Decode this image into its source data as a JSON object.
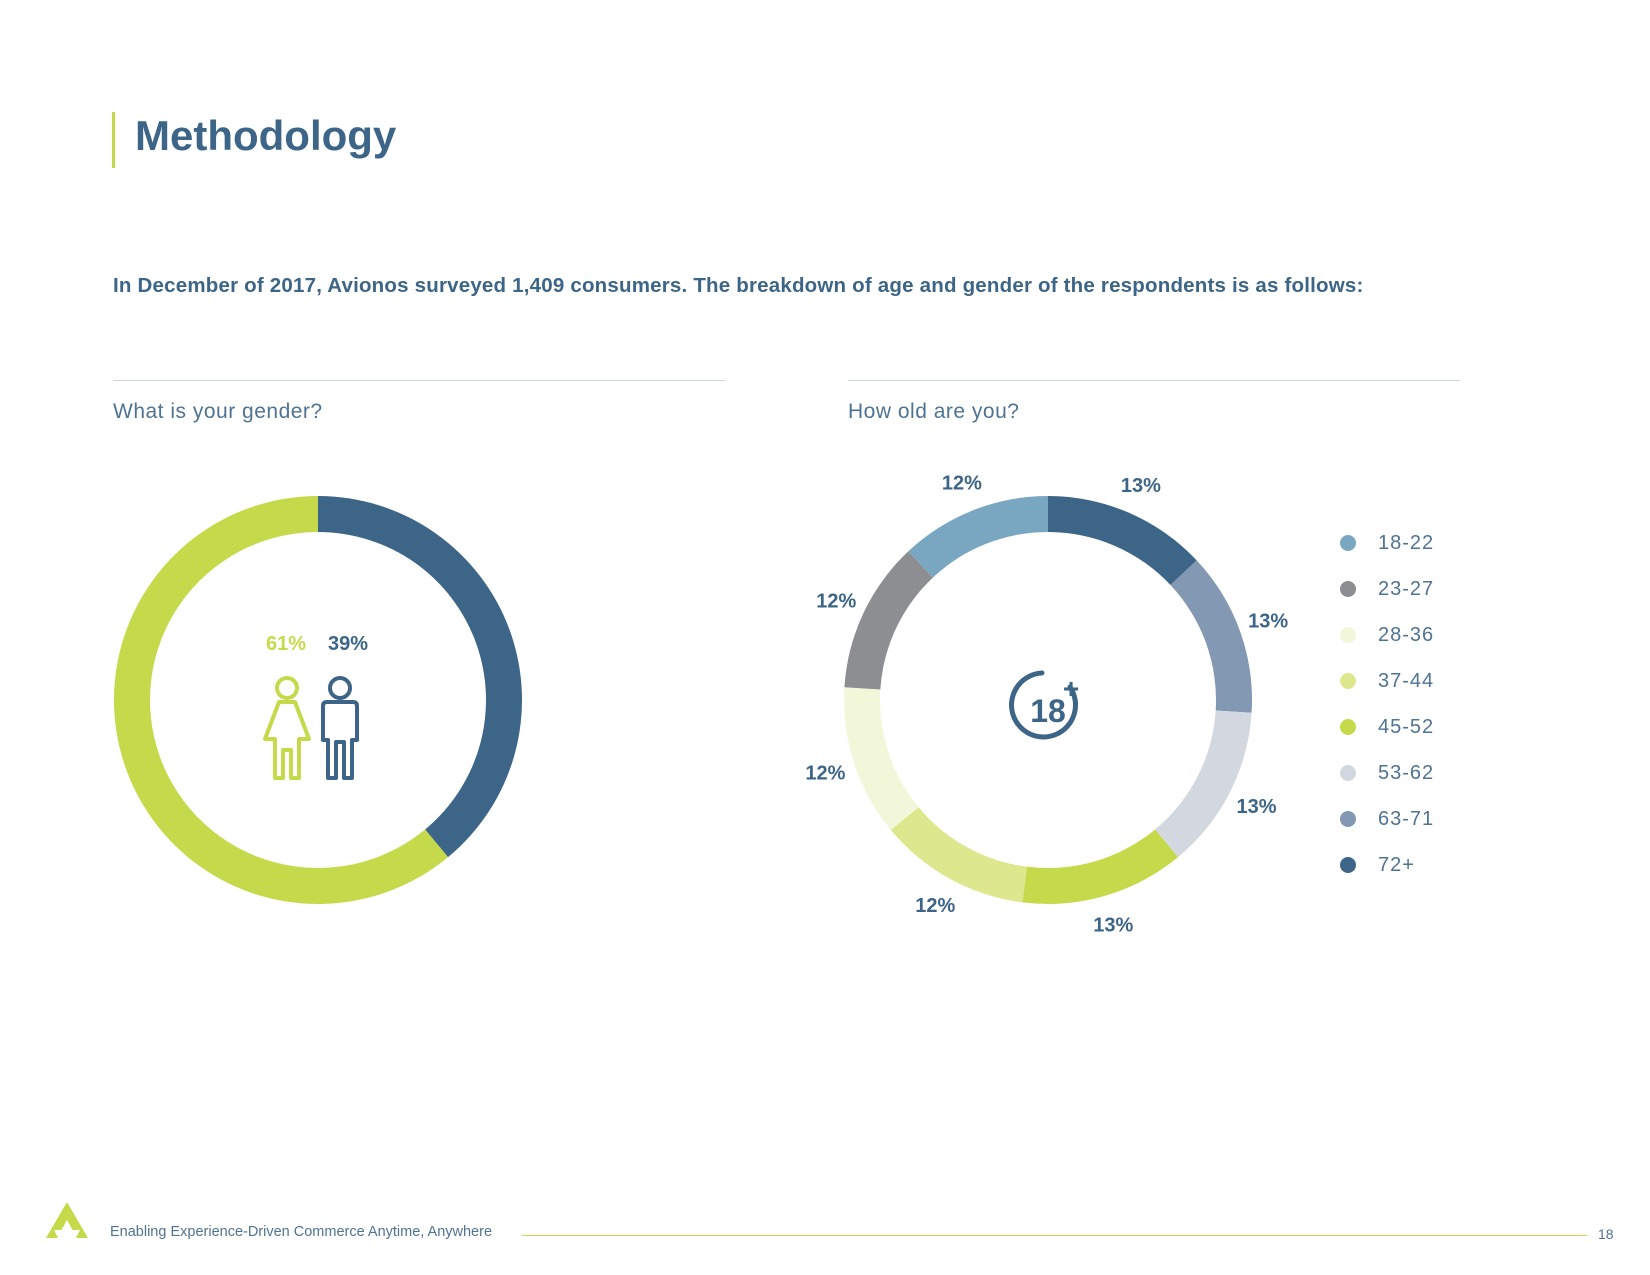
{
  "page": {
    "title": "Methodology",
    "intro": "In December of 2017, Avionos surveyed 1,409 consumers. The breakdown of age and gender of the respondents is as follows:",
    "footer_text": "Enabling Experience-Driven Commerce Anytime, Anywhere",
    "page_number": "18"
  },
  "colors": {
    "primary": "#3d6587",
    "accent": "#c5da4b"
  },
  "chart_data": [
    {
      "type": "pie",
      "subtype": "donut",
      "question": "What is your gender?",
      "slices": [
        {
          "label": "female",
          "value": 61,
          "display": "61%",
          "color": "#c5da4b"
        },
        {
          "label": "male",
          "value": 39,
          "display": "39%",
          "color": "#3d6587"
        }
      ]
    },
    {
      "type": "pie",
      "subtype": "donut",
      "question": "How old are you?",
      "center_label": "18",
      "center_plus": "+",
      "slices": [
        {
          "label": "72+",
          "value": 13,
          "display": "13%",
          "color": "#3d6587"
        },
        {
          "label": "63-71",
          "value": 13,
          "display": "13%",
          "color": "#8398b3"
        },
        {
          "label": "53-62",
          "value": 13,
          "display": "13%",
          "color": "#d3d8e0"
        },
        {
          "label": "45-52",
          "value": 13,
          "display": "13%",
          "color": "#c5da4b"
        },
        {
          "label": "37-44",
          "value": 12,
          "display": "12%",
          "color": "#dde88e"
        },
        {
          "label": "28-36",
          "value": 12,
          "display": "12%",
          "color": "#f3f7da"
        },
        {
          "label": "23-27",
          "value": 12,
          "display": "12%",
          "color": "#8c8e91"
        },
        {
          "label": "18-22",
          "value": 12,
          "display": "12%",
          "color": "#79a7c2"
        }
      ],
      "legend": [
        {
          "label": "18-22",
          "color": "#79a7c2"
        },
        {
          "label": "23-27",
          "color": "#8c8e91"
        },
        {
          "label": "28-36",
          "color": "#f3f7da"
        },
        {
          "label": "37-44",
          "color": "#dde88e"
        },
        {
          "label": "45-52",
          "color": "#c5da4b"
        },
        {
          "label": "53-62",
          "color": "#d3d8e0"
        },
        {
          "label": "63-71",
          "color": "#8398b3"
        },
        {
          "label": "72+",
          "color": "#3d6587"
        }
      ]
    }
  ]
}
